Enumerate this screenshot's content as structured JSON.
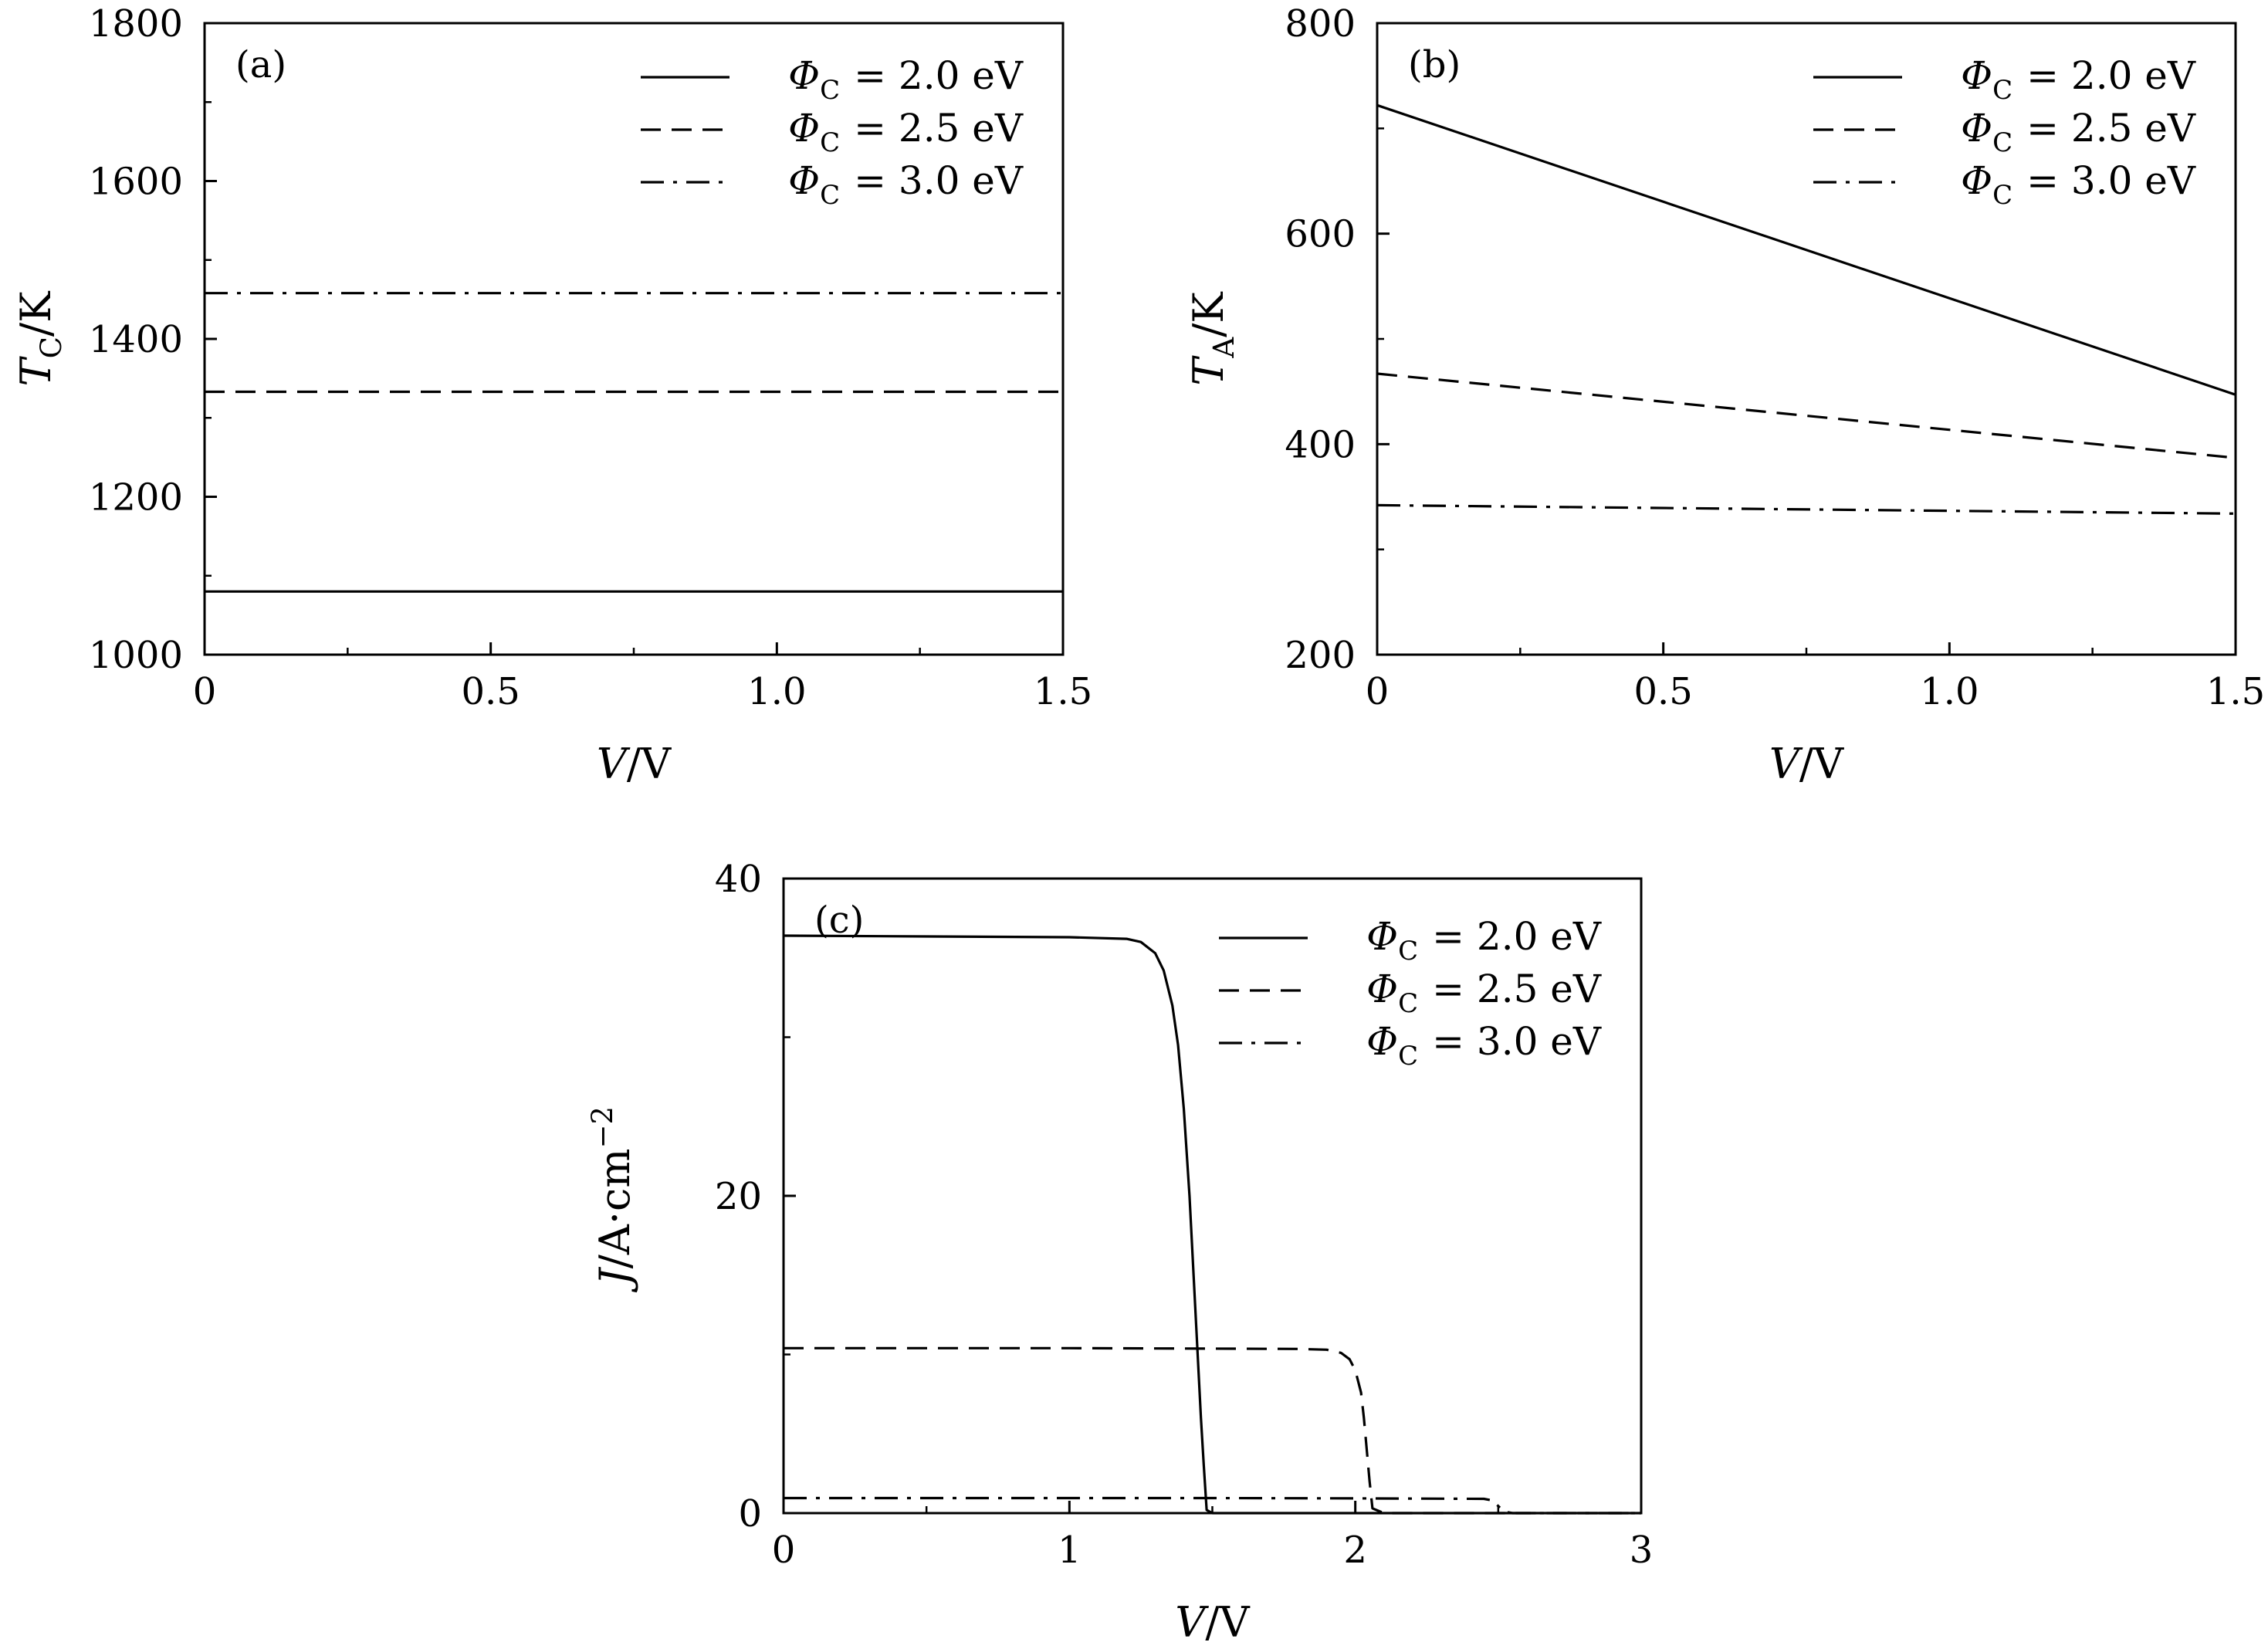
{
  "chart_data": [
    {
      "type": "line",
      "panel_label": "(a)",
      "xlabel": "V/V",
      "ylabel": "T_C/K",
      "xlim": [
        0,
        1.5
      ],
      "ylim": [
        1000,
        1800
      ],
      "xticks": [
        0,
        0.5,
        1.0,
        1.5
      ],
      "xtick_labels": [
        "0",
        "0.5",
        "1.0",
        "1.5"
      ],
      "yticks": [
        1000,
        1200,
        1400,
        1600,
        1800
      ],
      "ytick_labels": [
        "1000",
        "1200",
        "1400",
        "1600",
        "1800"
      ],
      "grid": false,
      "legend_position": "top-right",
      "series": [
        {
          "name": "Φ_C = 2.0 eV",
          "style": "solid",
          "x": [
            0,
            1.5
          ],
          "y": [
            1080,
            1080
          ]
        },
        {
          "name": "Φ_C = 2.5 eV",
          "style": "dashed",
          "x": [
            0,
            1.5
          ],
          "y": [
            1333,
            1333
          ]
        },
        {
          "name": "Φ_C = 3.0 eV",
          "style": "dashdot",
          "x": [
            0,
            1.5
          ],
          "y": [
            1458,
            1458
          ]
        }
      ]
    },
    {
      "type": "line",
      "panel_label": "(b)",
      "xlabel": "V/V",
      "ylabel": "T_A/K",
      "xlim": [
        0,
        1.5
      ],
      "ylim": [
        200,
        800
      ],
      "xticks": [
        0,
        0.5,
        1.0,
        1.5
      ],
      "xtick_labels": [
        "0",
        "0.5",
        "1.0",
        "1.5"
      ],
      "yticks": [
        200,
        400,
        600,
        800
      ],
      "ytick_labels": [
        "200",
        "400",
        "600",
        "800"
      ],
      "grid": false,
      "legend_position": "top-right",
      "series": [
        {
          "name": "Φ_C = 2.0 eV",
          "style": "solid",
          "x": [
            0,
            1.5
          ],
          "y": [
            722,
            447
          ]
        },
        {
          "name": "Φ_C = 2.5 eV",
          "style": "dashed",
          "x": [
            0,
            1.5
          ],
          "y": [
            467,
            387
          ]
        },
        {
          "name": "Φ_C = 3.0 eV",
          "style": "dashdot",
          "x": [
            0,
            1.5
          ],
          "y": [
            342,
            334
          ]
        }
      ]
    },
    {
      "type": "line",
      "panel_label": "(c)",
      "xlabel": "V/V",
      "ylabel": "J/A·cm^-2",
      "xlim": [
        0,
        3
      ],
      "ylim": [
        0,
        40
      ],
      "xticks": [
        0,
        1,
        2,
        3
      ],
      "xtick_labels": [
        "0",
        "1",
        "2",
        "3"
      ],
      "yticks": [
        0,
        20,
        40
      ],
      "ytick_labels": [
        "0",
        "20",
        "40"
      ],
      "grid": false,
      "legend_position": "top-right",
      "series": [
        {
          "name": "Φ_C = 2.0 eV",
          "style": "solid",
          "x": [
            0,
            0.5,
            1.0,
            1.2,
            1.25,
            1.3,
            1.33,
            1.36,
            1.38,
            1.4,
            1.42,
            1.44,
            1.46,
            1.47,
            1.48,
            1.5,
            3.0
          ],
          "y": [
            36.4,
            36.35,
            36.3,
            36.2,
            36.0,
            35.3,
            34.2,
            32.0,
            29.5,
            25.5,
            20.0,
            13.0,
            6.0,
            3.0,
            0.2,
            0,
            0
          ]
        },
        {
          "name": "Φ_C = 2.5 eV",
          "style": "dashed",
          "x": [
            0,
            1.0,
            1.8,
            1.9,
            1.95,
            1.98,
            2.0,
            2.02,
            2.03,
            2.04,
            2.05,
            2.06,
            2.1,
            3.0
          ],
          "y": [
            10.4,
            10.4,
            10.35,
            10.3,
            10.1,
            9.7,
            9.0,
            7.6,
            6.0,
            4.0,
            2.0,
            0.3,
            0,
            0
          ]
        },
        {
          "name": "Φ_C = 3.0 eV",
          "style": "dashdot",
          "x": [
            0,
            1.5,
            2.0,
            2.45,
            2.48,
            2.5,
            2.52,
            2.55,
            3.0
          ],
          "y": [
            0.95,
            0.95,
            0.93,
            0.9,
            0.8,
            0.45,
            0.1,
            0,
            0
          ]
        }
      ]
    }
  ]
}
